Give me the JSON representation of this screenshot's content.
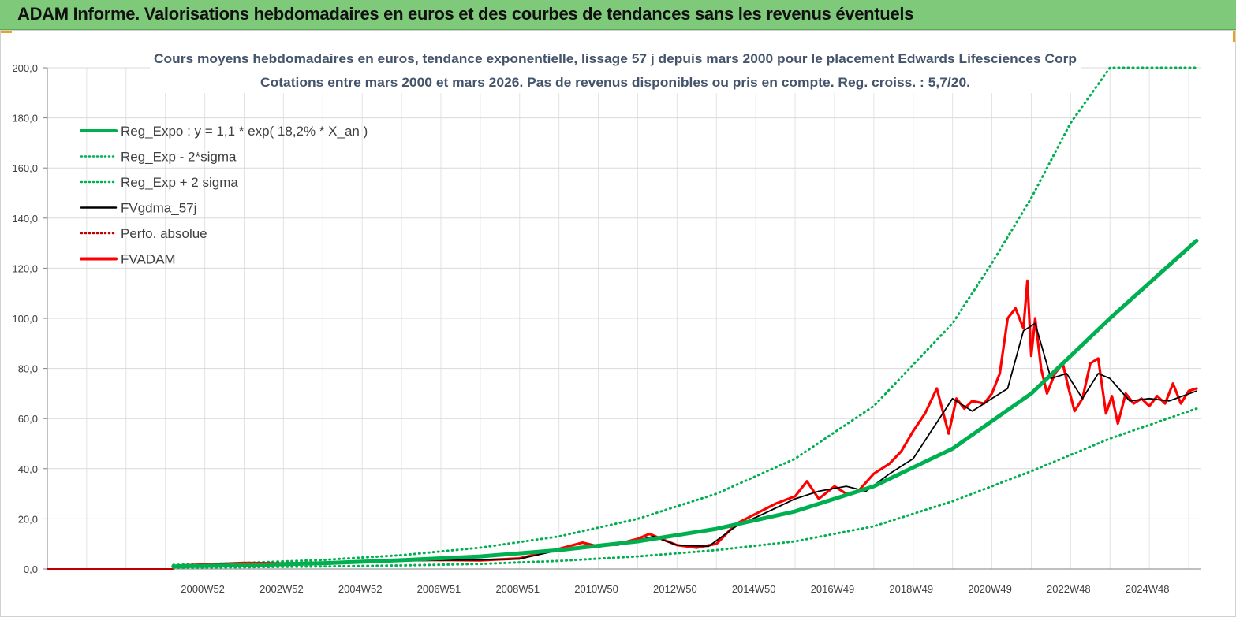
{
  "banner": {
    "title": "ADAM Informe. Valorisations hebdomadaires en euros et des courbes de tendances sans les revenus éventuels",
    "color": "#7fc97a"
  },
  "chart_data": {
    "type": "line",
    "title": "Cours moyens hebdomadaires en euros, tendance exponentielle, lissage 57 j depuis mars 2000 pour le placement Edwards Lifesciences  Corp",
    "subtitle": "Cotations entre mars 2000 et mars 2026. Pas de revenus disponibles ou pris en compte. Reg. croiss. : 5,7/20.",
    "xlabel": "",
    "ylabel": "",
    "ylim": [
      0,
      200
    ],
    "yticks": [
      "0,0",
      "20,0",
      "40,0",
      "60,0",
      "80,0",
      "100,0",
      "120,0",
      "140,0",
      "160,0",
      "180,0",
      "200,0"
    ],
    "xticks": [
      "2000W52",
      "2002W52",
      "2004W52",
      "2006W51",
      "2008W51",
      "2010W50",
      "2012W50",
      "2014W50",
      "2016W49",
      "2018W49",
      "2020W49",
      "2022W48",
      "2024W48"
    ],
    "grid": true,
    "legend_position": "top-left",
    "legend": [
      {
        "label": "Reg_Expo : y = 1,1 * exp( 18,2% *  X_an )",
        "color": "#00b050",
        "style": "solid-thick"
      },
      {
        "label": "Reg_Exp - 2*sigma",
        "color": "#00b050",
        "style": "dotted"
      },
      {
        "label": "Reg_Exp + 2 sigma",
        "color": "#00b050",
        "style": "dotted"
      },
      {
        "label": "FVgdma_57j",
        "color": "#000000",
        "style": "solid"
      },
      {
        "label": "Perfo. absolue",
        "color": "#c00000",
        "style": "dotted"
      },
      {
        "label": "FVADAM",
        "color": "#ff0000",
        "style": "solid-thick"
      }
    ],
    "series": [
      {
        "name": "Reg_Expo : y = 1,1 * exp( 18,2% *  X_an )",
        "x": [
          2000.2,
          2002,
          2004,
          2006,
          2008,
          2010,
          2012,
          2014,
          2016,
          2018,
          2020,
          2022,
          2024,
          2026.2
        ],
        "values": [
          1.0,
          1.5,
          2.3,
          3.5,
          5.0,
          7.5,
          11,
          16,
          23,
          33,
          48,
          70,
          100,
          131
        ]
      },
      {
        "name": "Reg_Exp - 2*sigma",
        "x": [
          2000.2,
          2002,
          2004,
          2006,
          2008,
          2010,
          2012,
          2014,
          2016,
          2018,
          2020,
          2022,
          2024,
          2026.2
        ],
        "values": [
          0.5,
          0.7,
          1.0,
          1.4,
          2.0,
          3.2,
          5.0,
          7.5,
          11,
          17,
          27,
          39,
          52,
          64
        ]
      },
      {
        "name": "Reg_Exp + 2 sigma",
        "x": [
          2000.2,
          2002,
          2004,
          2006,
          2008,
          2010,
          2012,
          2014,
          2016,
          2018,
          2020,
          2021,
          2022,
          2023,
          2024,
          2026.2
        ],
        "values": [
          1.6,
          2.4,
          3.6,
          5.5,
          8.5,
          13,
          20,
          30,
          44,
          65,
          98,
          122,
          148,
          178,
          200,
          200
        ]
      },
      {
        "name": "FVgdma_57j",
        "x": [
          2000.2,
          2001,
          2002,
          2003,
          2004,
          2005,
          2006,
          2007,
          2008,
          2009,
          2010,
          2010.8,
          2011.5,
          2012.4,
          2013,
          2013.8,
          2014.5,
          2015.2,
          2016,
          2016.6,
          2017.3,
          2017.8,
          2018.4,
          2019,
          2019.5,
          2020,
          2020.5,
          2021,
          2021.4,
          2021.8,
          2022.1,
          2022.5,
          2022.9,
          2023.3,
          2023.7,
          2024,
          2024.5,
          2025,
          2025.5,
          2026.2
        ],
        "values": [
          1.2,
          1.7,
          2.2,
          2.0,
          2.3,
          2.8,
          3.2,
          3.5,
          3.6,
          4.0,
          7.5,
          9.5,
          9.5,
          13,
          9.5,
          9.0,
          17,
          22,
          28,
          31,
          33,
          31,
          38,
          44,
          56,
          68,
          63,
          68,
          72,
          95,
          98,
          76,
          78,
          68,
          78,
          76,
          67,
          68,
          67,
          71
        ]
      },
      {
        "name": "FVADAM",
        "x": [
          2000.2,
          2001,
          2002,
          2003,
          2004,
          2005,
          2006,
          2007,
          2008,
          2009,
          2010,
          2010.6,
          2011,
          2011.5,
          2012,
          2012.3,
          2012.6,
          2013,
          2013.5,
          2014,
          2014.5,
          2015,
          2015.5,
          2016,
          2016.3,
          2016.6,
          2017,
          2017.3,
          2017.6,
          2018,
          2018.4,
          2018.7,
          2019,
          2019.3,
          2019.6,
          2019.9,
          2020.1,
          2020.3,
          2020.5,
          2020.8,
          2021,
          2021.2,
          2021.4,
          2021.6,
          2021.8,
          2021.9,
          2022.0,
          2022.1,
          2022.25,
          2022.4,
          2022.6,
          2022.8,
          2022.95,
          2023.1,
          2023.3,
          2023.5,
          2023.7,
          2023.9,
          2024.05,
          2024.2,
          2024.4,
          2024.6,
          2024.8,
          2025.0,
          2025.2,
          2025.4,
          2025.6,
          2025.8,
          2026.0,
          2026.2
        ],
        "values": [
          1.2,
          1.8,
          2.4,
          2.2,
          2.5,
          3.0,
          3.4,
          3.6,
          3.4,
          4.2,
          8.0,
          10.5,
          9.0,
          10,
          12,
          14,
          12,
          9.5,
          8.5,
          10,
          18,
          22,
          26,
          29,
          35,
          28,
          33,
          30,
          31,
          38,
          42,
          47,
          55,
          62,
          72,
          54,
          68,
          64,
          67,
          66,
          70,
          78,
          100,
          104,
          96,
          115,
          85,
          100,
          80,
          70,
          78,
          82,
          72,
          63,
          68,
          82,
          84,
          62,
          69,
          58,
          70,
          66,
          68,
          65,
          69,
          66,
          74,
          66,
          71,
          72
        ]
      },
      {
        "name": "Perfo. absolue",
        "x": [
          1997.0,
          2000.2
        ],
        "values": [
          0,
          0
        ]
      }
    ]
  }
}
